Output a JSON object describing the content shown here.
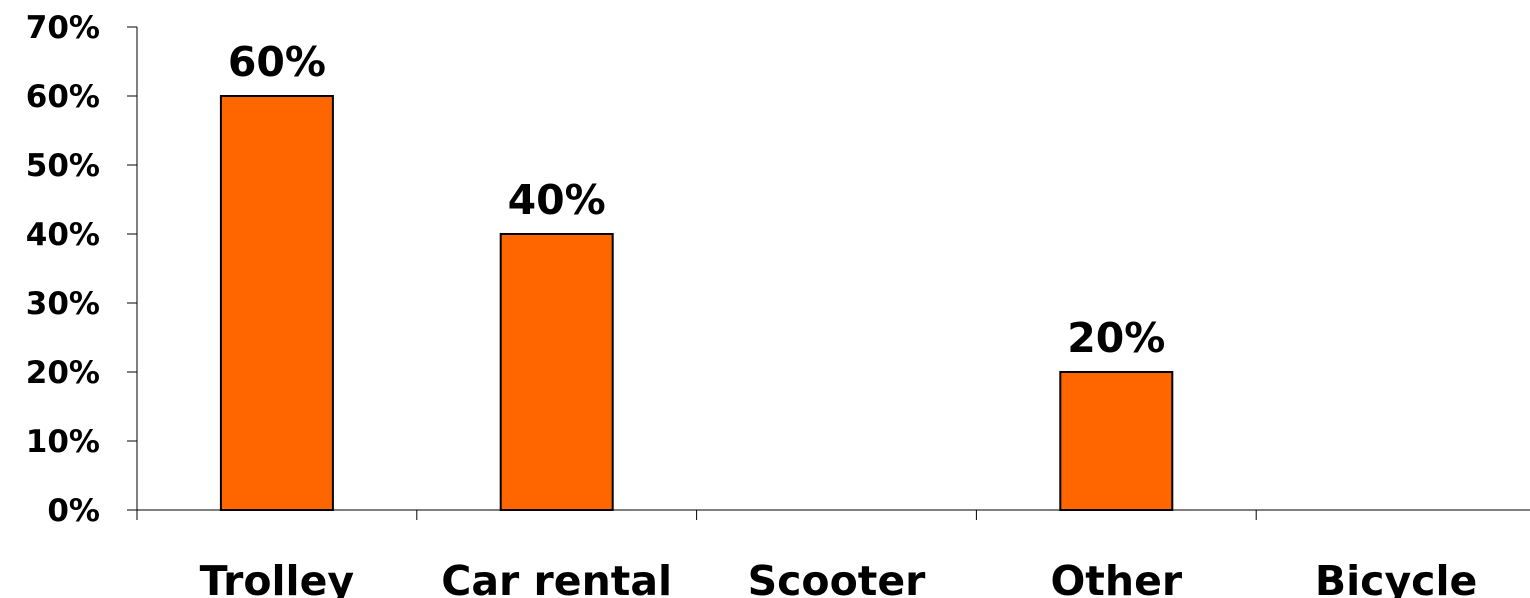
{
  "chart_data": {
    "type": "bar",
    "title": "",
    "xlabel": "",
    "ylabel": "",
    "categories": [
      "Trolley",
      "Car rental",
      "Scooter",
      "Other",
      "Bicycle"
    ],
    "values": [
      60,
      40,
      0,
      20,
      0
    ],
    "data_labels": [
      "60%",
      "40%",
      "",
      "20%",
      ""
    ],
    "ylim": [
      0,
      70
    ],
    "yticks": [
      0,
      10,
      20,
      30,
      40,
      50,
      60,
      70
    ],
    "ytick_labels": [
      "0%",
      "10%",
      "20%",
      "30%",
      "40%",
      "50%",
      "60%",
      "70%"
    ],
    "grid": false,
    "legend": "none",
    "bar_color": "#ff6600",
    "bar_edge_color": "#000000"
  }
}
